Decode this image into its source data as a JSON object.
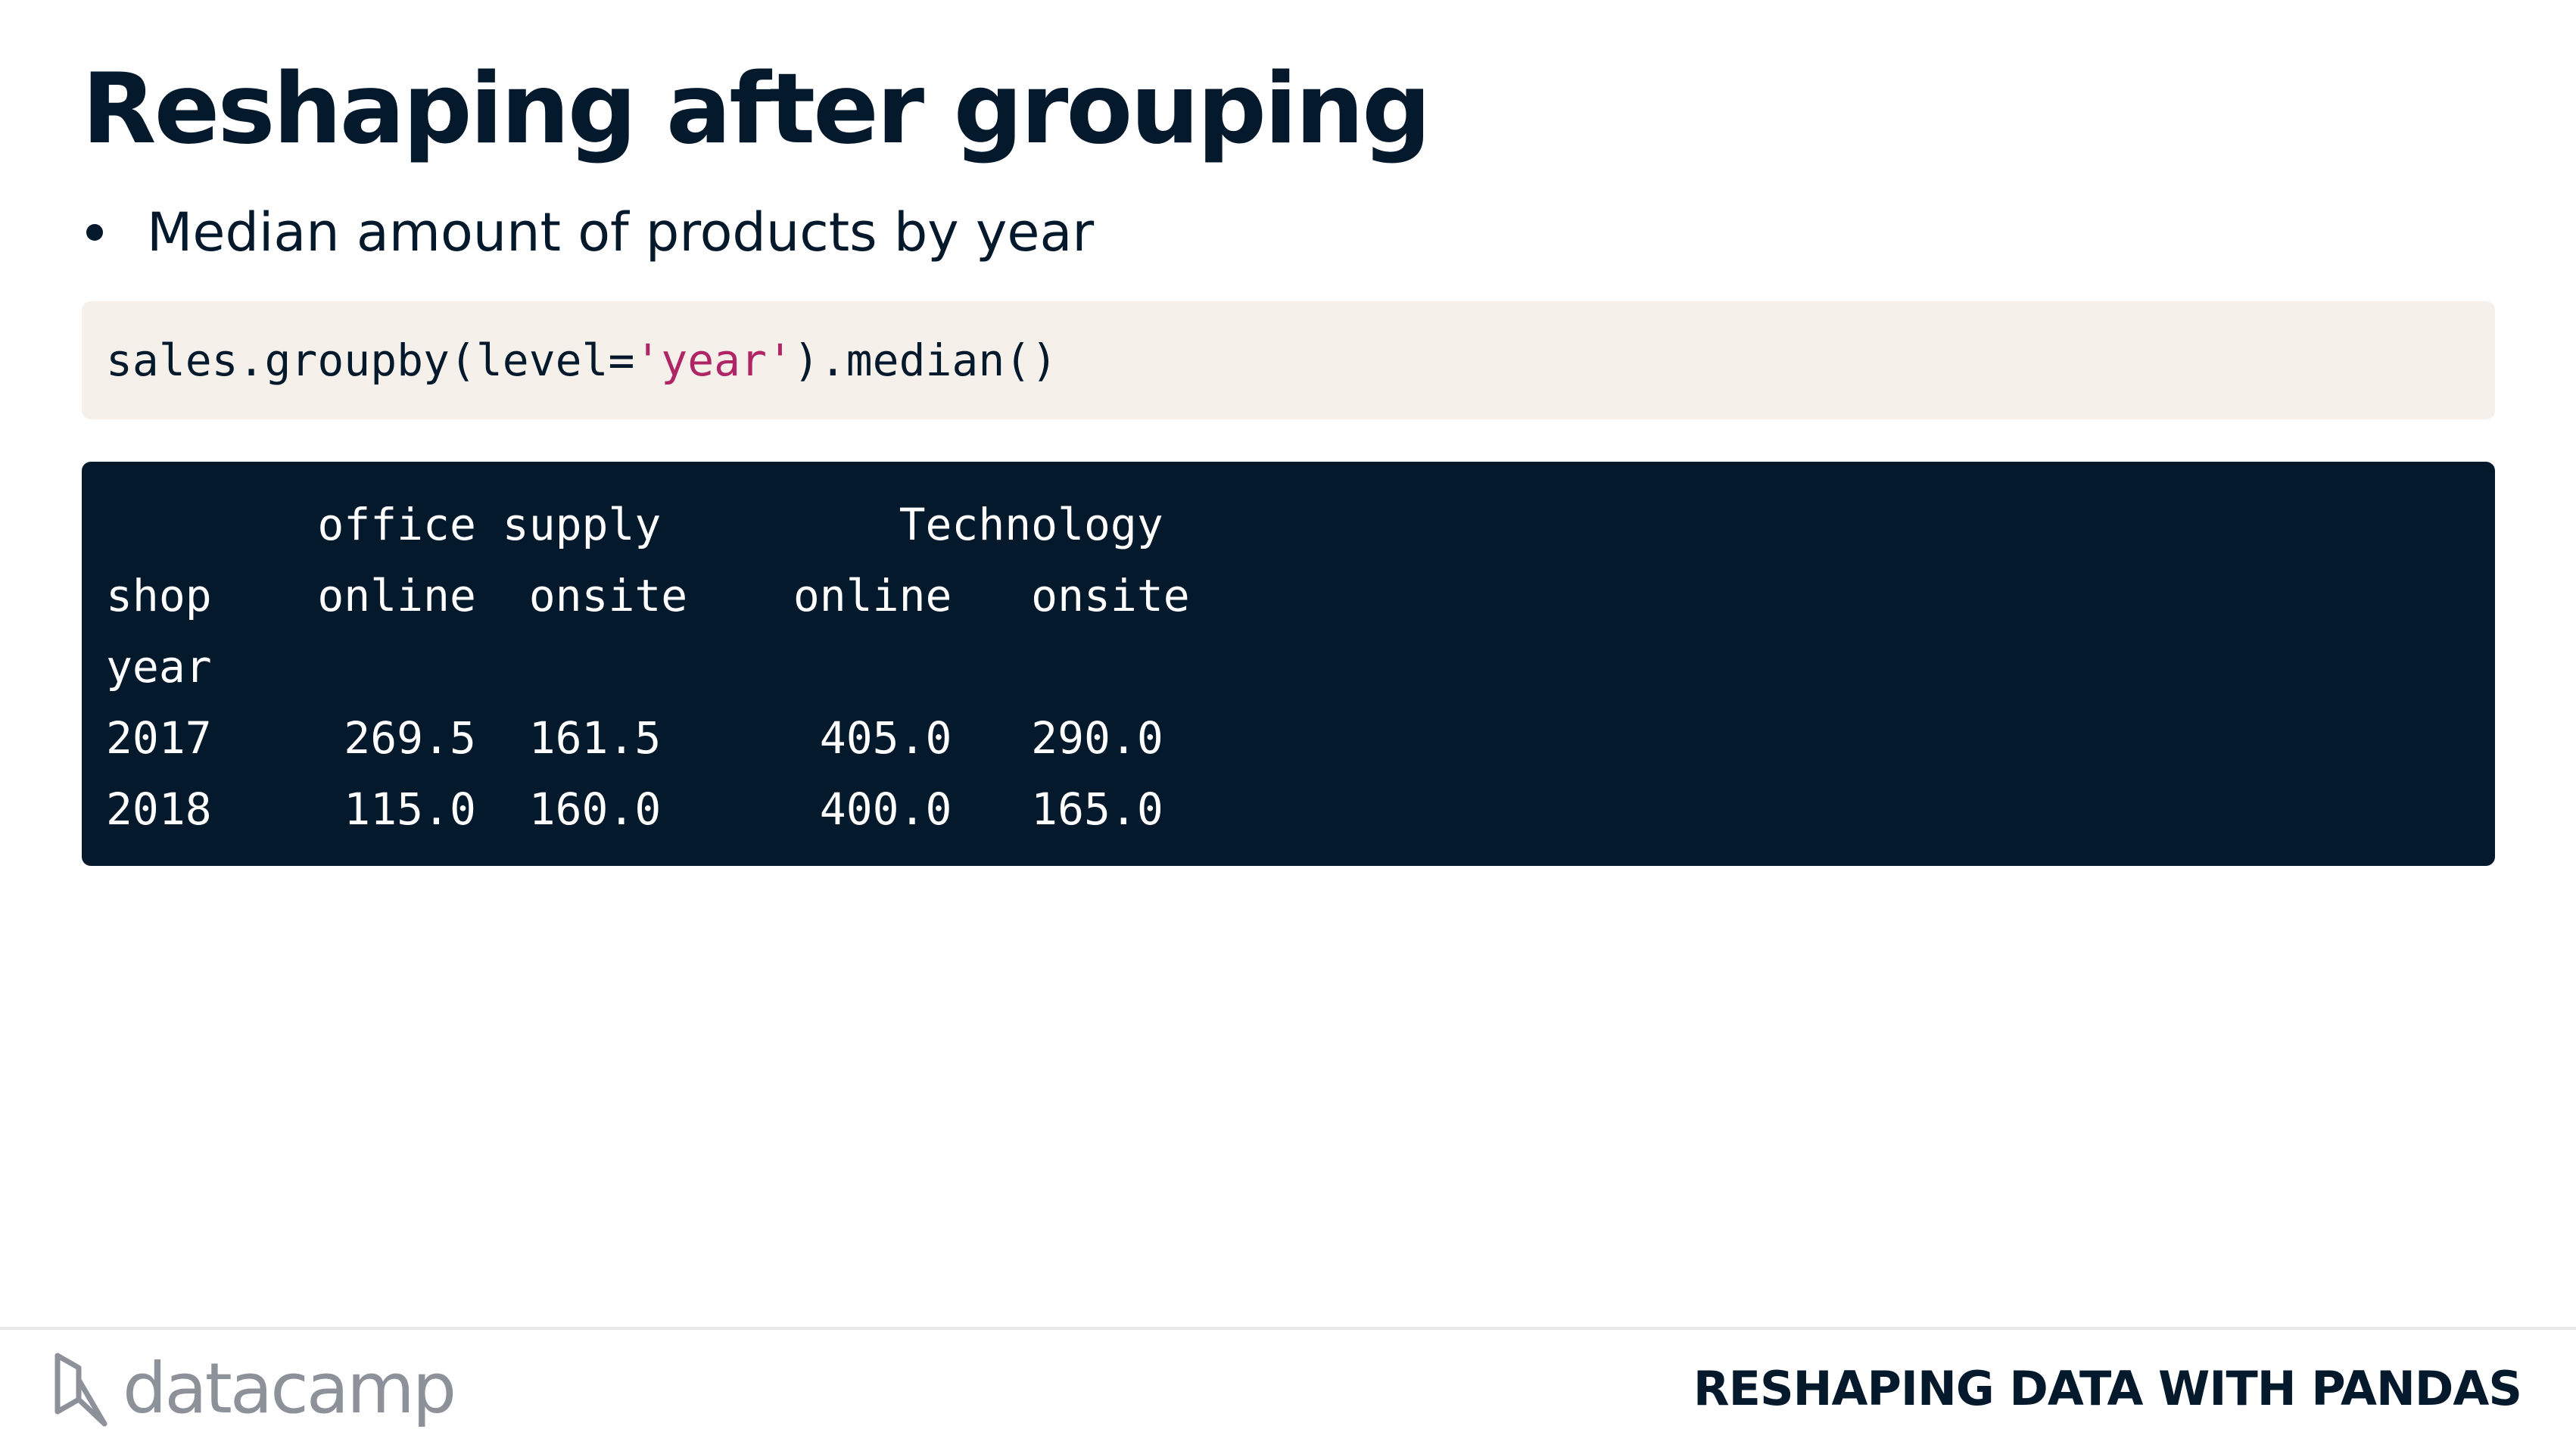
{
  "slide": {
    "title": "Reshaping after grouping",
    "bullets": [
      "Median amount of products by year"
    ]
  },
  "code": {
    "before_string": "sales.groupby(level=",
    "string_literal": "'year'",
    "after_string": ").median()"
  },
  "output": {
    "lines": [
      "        office supply         Technology",
      "shop    online  onsite    online   onsite",
      "year",
      "2017     269.5  161.5      405.0   290.0",
      "2018     115.0  160.0      400.0   165.0"
    ]
  },
  "footer": {
    "logo_text": "datacamp",
    "course_name": "RESHAPING DATA WITH PANDAS"
  },
  "colors": {
    "text_primary": "#05192d",
    "code_background": "#f5f1ea",
    "output_background": "#05192d",
    "string_literal": "#b02566",
    "logo_gray": "#8d9199"
  }
}
